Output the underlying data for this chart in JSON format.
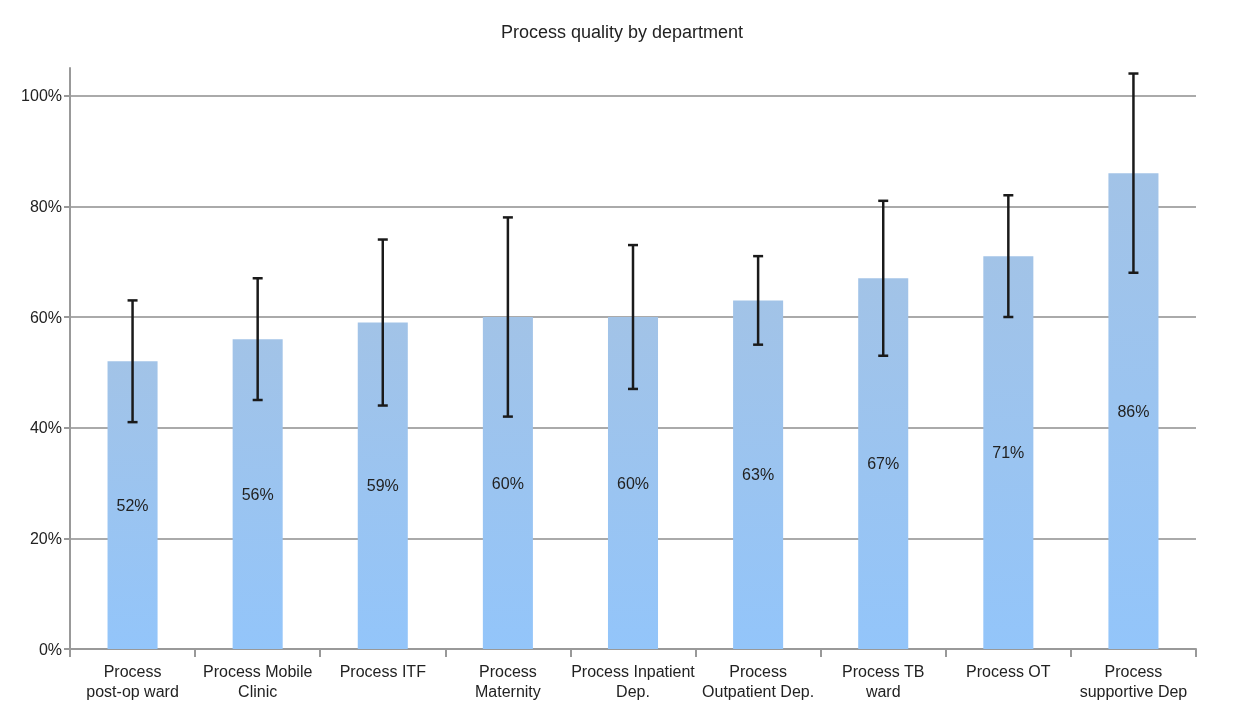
{
  "chart_data": {
    "type": "bar",
    "title": "Process quality by department",
    "categories": [
      "Process\npost-op ward",
      "Process Mobile\nClinic",
      "Process ITF",
      "Process\nMaternity",
      "Process Inpatient\nDep.",
      "Process\nOutpatient Dep.",
      "Process TB\nward",
      "Process OT",
      "Process\nsupportive Dep"
    ],
    "values": [
      52,
      56,
      59,
      60,
      60,
      63,
      67,
      71,
      86
    ],
    "value_labels": [
      "52%",
      "56%",
      "59%",
      "60%",
      "60%",
      "63%",
      "67%",
      "71%",
      "86%"
    ],
    "errors": [
      [
        41,
        63
      ],
      [
        45,
        67
      ],
      [
        44,
        74
      ],
      [
        42,
        78
      ],
      [
        47,
        73
      ],
      [
        55,
        71
      ],
      [
        53,
        81
      ],
      [
        60,
        82
      ],
      [
        68,
        104
      ]
    ],
    "color": "#84b0e0",
    "ylim": [
      0,
      105
    ],
    "yticks": [
      {
        "value": 0,
        "label": "0%"
      },
      {
        "value": 20,
        "label": "20%"
      },
      {
        "value": 40,
        "label": "40%"
      },
      {
        "value": 60,
        "label": "60%"
      },
      {
        "value": 80,
        "label": "80%"
      },
      {
        "value": 100,
        "label": "100%"
      }
    ],
    "grid": "y"
  }
}
